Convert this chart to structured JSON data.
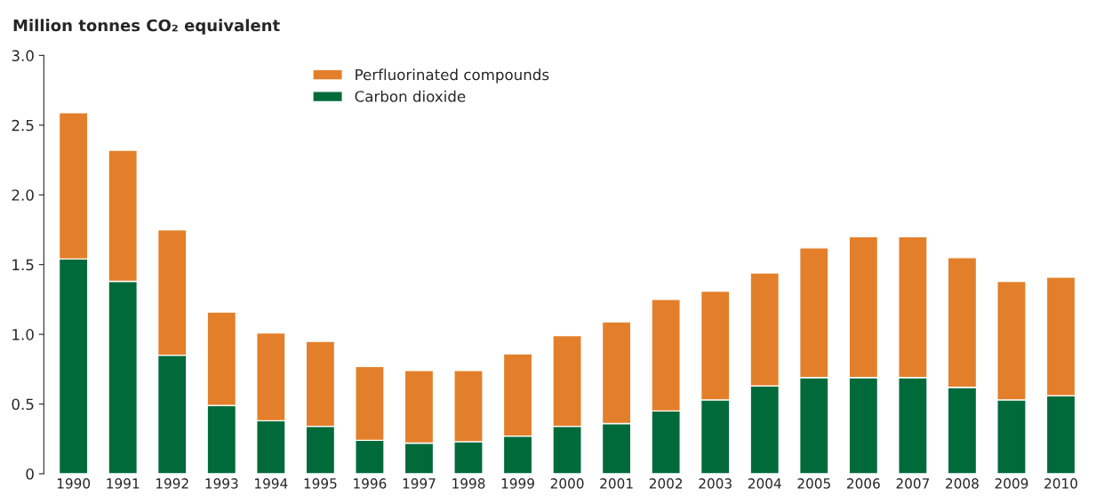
{
  "chart_data": {
    "type": "bar",
    "stacked": true,
    "ylabel": "Million tonnes CO₂ equivalent",
    "categories": [
      "1990",
      "1991",
      "1992",
      "1993",
      "1994",
      "1995",
      "1996",
      "1997",
      "1998",
      "1999",
      "2000",
      "2001",
      "2002",
      "2003",
      "2004",
      "2005",
      "2006",
      "2007",
      "2008",
      "2009",
      "2010"
    ],
    "series": [
      {
        "name": "Carbon dioxide",
        "color": "#006a3b",
        "values": [
          1.54,
          1.38,
          0.85,
          0.49,
          0.38,
          0.34,
          0.24,
          0.22,
          0.23,
          0.27,
          0.34,
          0.36,
          0.45,
          0.53,
          0.63,
          0.69,
          0.69,
          0.69,
          0.62,
          0.53,
          0.56
        ]
      },
      {
        "name": "Perfluorinated compounds",
        "color": "#e37f2a",
        "values": [
          1.05,
          0.94,
          0.9,
          0.67,
          0.63,
          0.61,
          0.53,
          0.52,
          0.51,
          0.59,
          0.65,
          0.73,
          0.8,
          0.78,
          0.81,
          0.93,
          1.01,
          1.01,
          0.93,
          0.85,
          0.85
        ]
      }
    ],
    "ylim": [
      0,
      3.0
    ],
    "yticks": [
      0,
      0.5,
      {
        "value": 1.0,
        "label": "1.0"
      },
      1.5,
      {
        "value": 2.0,
        "label": "2.0"
      },
      2.5,
      {
        "value": 3.0,
        "label": "3.0"
      }
    ],
    "grid": false,
    "legend": "top"
  }
}
